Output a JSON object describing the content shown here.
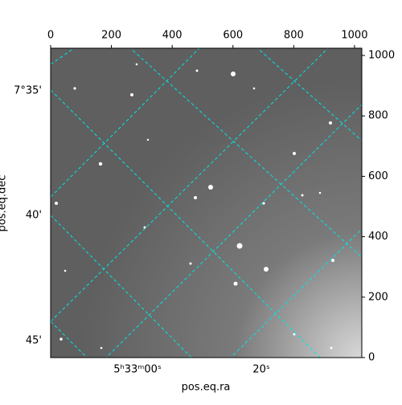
{
  "chart_data": {
    "type": "image",
    "xlabel": "pos.eq.ra",
    "ylabel": "pos.eq.dec",
    "xlim": [
      0,
      1024
    ],
    "ylim": [
      0,
      1024
    ],
    "xticks": [
      0,
      200,
      400,
      600,
      800,
      1000
    ],
    "yticks": [
      0,
      200,
      400,
      600,
      800,
      1000
    ],
    "ra_tick_labels": [
      "5ʰ33ᵐ00ˢ",
      "20ˢ"
    ],
    "dec_tick_labels": [
      "7°35'",
      "40'",
      "45'"
    ],
    "grid_color": "#00e5e5"
  }
}
